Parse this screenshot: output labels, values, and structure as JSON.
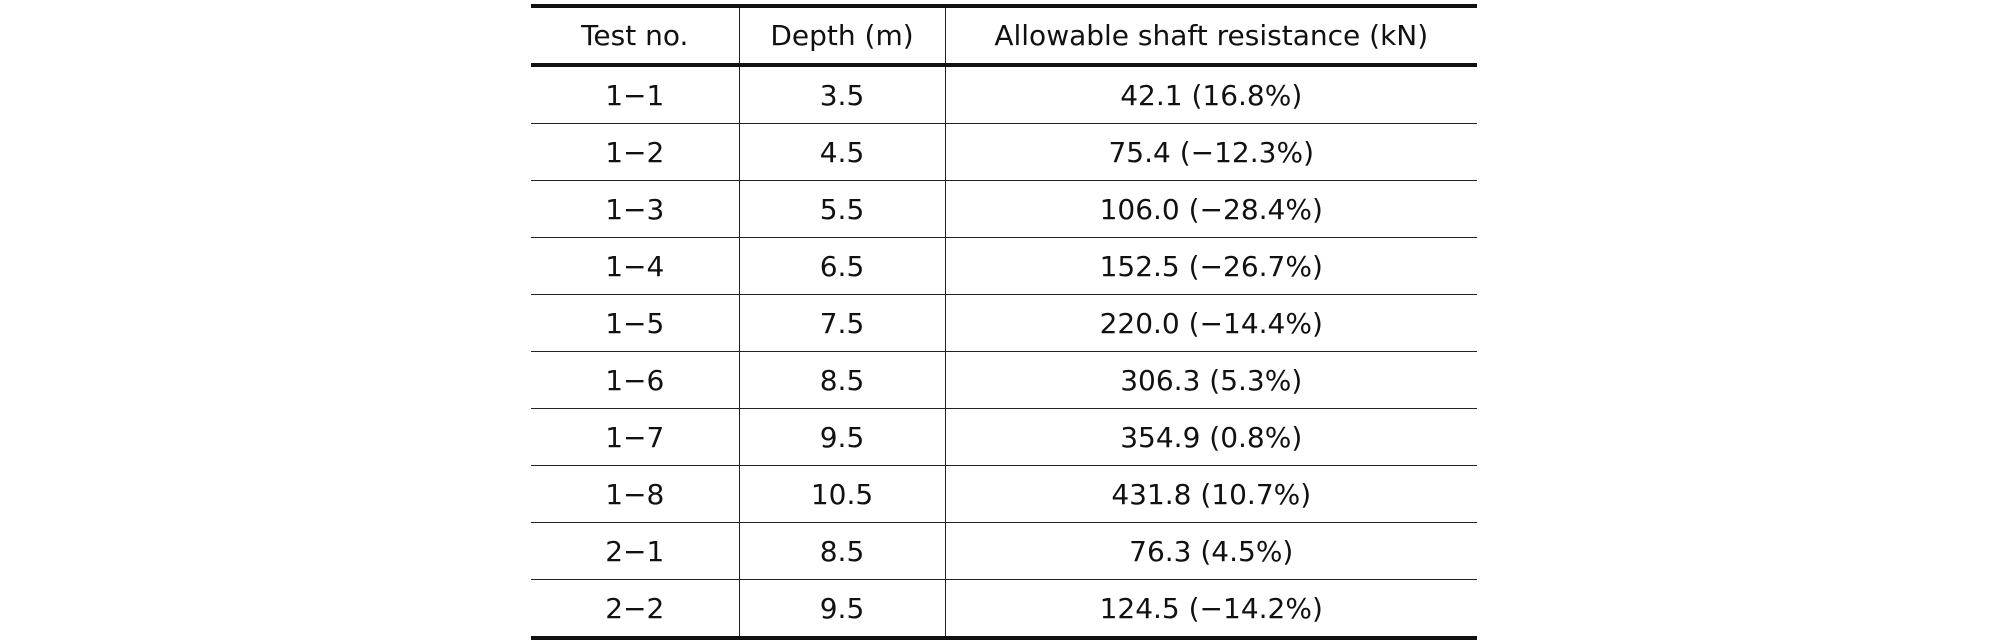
{
  "table": {
    "header": [
      "Test no.",
      "Depth (m)",
      "Allowable shaft resistance (kN)"
    ],
    "rows": [
      [
        "1−1",
        "3.5",
        "42.1 (16.8%)"
      ],
      [
        "1−2",
        "4.5",
        "75.4 (−12.3%)"
      ],
      [
        "1−3",
        "5.5",
        "106.0 (−28.4%)"
      ],
      [
        "1−4",
        "6.5",
        "152.5 (−26.7%)"
      ],
      [
        "1−5",
        "7.5",
        "220.0 (−14.4%)"
      ],
      [
        "1−6",
        "8.5",
        "306.3 (5.3%)"
      ],
      [
        "1−7",
        "9.5",
        "354.9 (0.8%)"
      ],
      [
        "1−8",
        "10.5",
        "431.8 (10.7%)"
      ],
      [
        "2−1",
        "8.5",
        "76.3 (4.5%)"
      ],
      [
        "2−2",
        "9.5",
        "124.5 (−14.2%)"
      ]
    ]
  }
}
